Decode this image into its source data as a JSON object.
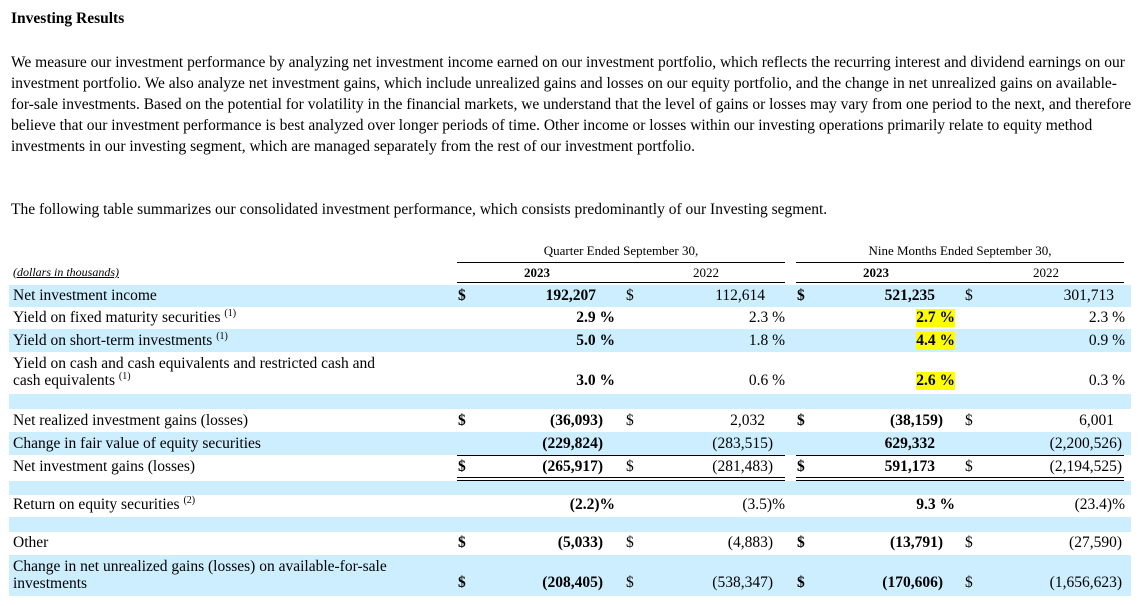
{
  "heading": "Investing Results",
  "paragraph1": "We measure our investment performance by analyzing net investment income earned on our investment portfolio, which reflects the recurring interest and dividend earnings on our investment portfolio. We also analyze net investment gains, which include unrealized gains and losses on our equity portfolio, and the change in net unrealized gains on available-for-sale investments. Based on the potential for volatility in the financial markets, we understand that the level of gains or losses may vary from one period to the next, and therefore believe that our investment performance is best analyzed over longer periods of time. Other income or losses within our investing operations primarily relate to equity method investments in our investing segment, which are managed separately from the rest of our investment portfolio.",
  "paragraph2": "The following table summarizes our consolidated investment performance, which consists predominantly of our Investing segment.",
  "table": {
    "units": "(dollars in thousands)",
    "group_q": "Quarter Ended September 30,",
    "group_n": "Nine Months Ended September 30,",
    "year_a": "2023",
    "year_b": "2022",
    "dollar": "$",
    "rows": {
      "nii": {
        "label": "Net investment income",
        "q23": "192,207",
        "q22": "112,614",
        "n23": "521,235",
        "n22": "301,713"
      },
      "yfm": {
        "label": "Yield on fixed maturity securities",
        "note": "(1)",
        "q23": "2.9 %",
        "q22": "2.3 %",
        "n23": "2.7 %",
        "n22": "2.3 %"
      },
      "yst": {
        "label": "Yield on short-term investments",
        "note": "(1)",
        "q23": "5.0 %",
        "q22": "1.8 %",
        "n23": "4.4 %",
        "n22": "0.9 %"
      },
      "ycash": {
        "label1": "Yield on cash and cash equivalents and restricted cash and",
        "label2": "cash equivalents",
        "note": "(1)",
        "q23": "3.0 %",
        "q22": "0.6 %",
        "n23": "2.6 %",
        "n22": "0.3 %"
      },
      "nrig": {
        "label": "Net realized investment gains (losses)",
        "q23": "(36,093)",
        "q22": "2,032",
        "n23": "(38,159)",
        "n22": "6,001"
      },
      "cfv": {
        "label": "Change in fair value of equity securities",
        "q23": "(229,824)",
        "q22": "(283,515)",
        "n23": "629,332",
        "n22": "(2,200,526)"
      },
      "nig": {
        "label": "Net investment gains (losses)",
        "q23": "(265,917)",
        "q22": "(281,483)",
        "n23": "591,173",
        "n22": "(2,194,525)"
      },
      "roe": {
        "label": "Return on equity securities",
        "note": "(2)",
        "q23": "(2.2)%",
        "q22": "(3.5)%",
        "n23": "9.3 %",
        "n22": "(23.4)%"
      },
      "other": {
        "label": "Other",
        "q23": "(5,033)",
        "q22": "(4,883)",
        "n23": "(13,791)",
        "n22": "(27,590)"
      },
      "cnug": {
        "label1": "Change in net unrealized gains (losses) on available-for-sale",
        "label2": "investments",
        "q23": "(208,405)",
        "q22": "(538,347)",
        "n23": "(170,606)",
        "n22": "(1,656,623)"
      }
    }
  },
  "colors": {
    "row_shade": "#cceeff",
    "highlight": "#ffff00"
  }
}
